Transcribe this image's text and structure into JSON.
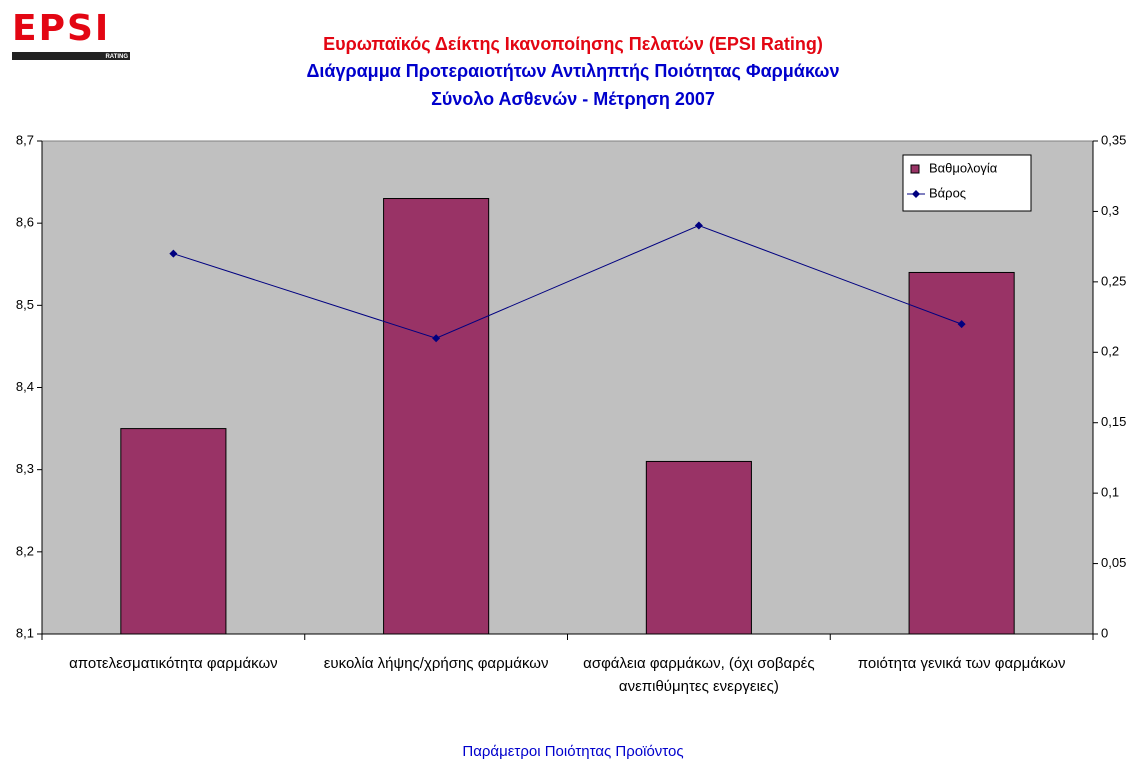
{
  "logo": {
    "text": "EPSI",
    "sub": "RATING"
  },
  "chart_data": {
    "type": "bar",
    "title": "Ευρωπαϊκός Δείκτης Ικανοποίησης Πελατών (EPSI Rating)",
    "subtitle": "Διάγραμμα Προτεραιοτήτων Αντιληπτής Ποιότητας Φαρμάκων",
    "subtitle2": "Σύνολο Ασθενών - Μέτρηση 2007",
    "xlabel": "Παράμετροι Ποιότητας Προϊόντος",
    "categories": [
      "αποτελεσματικότητα φαρμάκων",
      "ευκολία λήψης/χρήσης φαρμάκων",
      "ασφάλεια φαρμάκων, (όχι σοβαρές ανεπιθύμητες ενεργειες)",
      "ποιότητα γενικά των φαρμάκων"
    ],
    "series": [
      {
        "name": "Βαθμολογία",
        "color": "#993366",
        "type": "bar",
        "values": [
          8.35,
          8.63,
          8.31,
          8.54
        ]
      },
      {
        "name": "Βάρος",
        "color": "#000080",
        "type": "line",
        "axis": "y2",
        "values": [
          0.27,
          0.21,
          0.29,
          0.22
        ]
      }
    ],
    "ylim": [
      8.1,
      8.7
    ],
    "yticks": [
      {
        "value": 8.1,
        "label": "8,1"
      },
      {
        "value": 8.2,
        "label": "8,2"
      },
      {
        "value": 8.3,
        "label": "8,3"
      },
      {
        "value": 8.4,
        "label": "8,4"
      },
      {
        "value": 8.5,
        "label": "8,5"
      },
      {
        "value": 8.6,
        "label": "8,6"
      },
      {
        "value": 8.7,
        "label": "8,7"
      }
    ],
    "y2lim": [
      0,
      0.35
    ],
    "y2ticks": [
      0,
      {
        "value": 0.05,
        "label": "0,05"
      },
      {
        "value": 0.1,
        "label": "0,1"
      },
      {
        "value": 0.15,
        "label": "0,15"
      },
      {
        "value": 0.2,
        "label": "0,2"
      },
      {
        "value": 0.25,
        "label": "0,25"
      },
      {
        "value": 0.3,
        "label": "0,3"
      },
      {
        "value": 0.35,
        "label": "0,35"
      }
    ],
    "plot_background": "#c0c0c0",
    "legend": "top-right"
  }
}
